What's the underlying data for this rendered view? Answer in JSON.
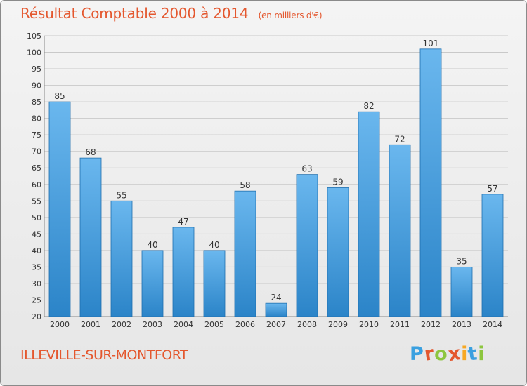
{
  "header": {
    "title": "Résultat Comptable 2000 à 2014",
    "subtitle": "(en milliers d'€)"
  },
  "footer": {
    "place": "ILLEVILLE-SUR-MONTFORT",
    "logo_letters": [
      "P",
      "r",
      "o",
      "x",
      "i",
      "t",
      "i"
    ],
    "logo_colors": [
      "#3aa0e0",
      "#e4572e",
      "#8dc63f",
      "#e4572e",
      "#f7a823",
      "#3aa0e0",
      "#8dc63f"
    ]
  },
  "colors": {
    "bar_light": "#6ab7ee",
    "bar_dark": "#2b84c8",
    "bar_edge": "#1f6fae",
    "grid": "#c9c9c9",
    "accent": "#e4572e"
  },
  "chart_data": {
    "type": "bar",
    "title": "Résultat Comptable 2000 à 2014",
    "xlabel": "",
    "ylabel": "",
    "categories": [
      "2000",
      "2001",
      "2002",
      "2003",
      "2004",
      "2005",
      "2006",
      "2007",
      "2008",
      "2009",
      "2010",
      "2011",
      "2012",
      "2013",
      "2014"
    ],
    "values": [
      85,
      68,
      55,
      40,
      47,
      40,
      58,
      24,
      63,
      59,
      82,
      72,
      101,
      35,
      57
    ],
    "ylim": [
      20,
      105
    ],
    "yticks": [
      20,
      25,
      30,
      35,
      40,
      45,
      50,
      55,
      60,
      65,
      70,
      75,
      80,
      85,
      90,
      95,
      100,
      105
    ],
    "grid": true,
    "legend": "none"
  }
}
